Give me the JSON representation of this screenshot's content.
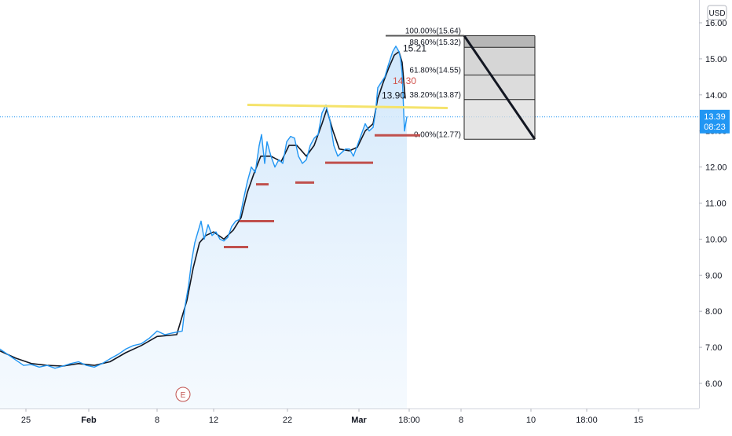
{
  "chart_data": {
    "type": "area",
    "currency": "USD",
    "price_axis": {
      "ticks": [
        "16.00",
        "15.00",
        "14.00",
        "13.00",
        "12.00",
        "11.00",
        "10.00",
        "9.00",
        "8.00",
        "7.00",
        "6.00"
      ],
      "range": [
        5.3,
        16.3
      ]
    },
    "time_axis": {
      "ticks": [
        "25",
        "Feb",
        "8",
        "12",
        "22",
        "Mar",
        "18:00",
        "8",
        "10",
        "18:00",
        "15"
      ]
    },
    "last_price": {
      "value": "13.39",
      "countdown": "08:23",
      "level": 13.39
    },
    "series": [
      {
        "kind": "price",
        "points": [
          [
            0,
            6.95
          ],
          [
            10,
            6.8
          ],
          [
            20,
            6.65
          ],
          [
            30,
            6.5
          ],
          [
            40,
            6.52
          ],
          [
            50,
            6.45
          ],
          [
            60,
            6.5
          ],
          [
            70,
            6.42
          ],
          [
            80,
            6.48
          ],
          [
            90,
            6.55
          ],
          [
            100,
            6.6
          ],
          [
            110,
            6.5
          ],
          [
            120,
            6.45
          ],
          [
            130,
            6.55
          ],
          [
            140,
            6.68
          ],
          [
            150,
            6.8
          ],
          [
            160,
            6.95
          ],
          [
            170,
            7.05
          ],
          [
            180,
            7.1
          ],
          [
            190,
            7.25
          ],
          [
            200,
            7.45
          ],
          [
            210,
            7.35
          ],
          [
            220,
            7.4
          ],
          [
            232,
            7.45
          ],
          [
            236,
            8.2
          ],
          [
            240,
            8.7
          ],
          [
            244,
            9.4
          ],
          [
            248,
            9.9
          ],
          [
            252,
            10.2
          ],
          [
            256,
            10.5
          ],
          [
            260,
            10.0
          ],
          [
            265,
            10.4
          ],
          [
            270,
            10.1
          ],
          [
            275,
            10.2
          ],
          [
            280,
            10.0
          ],
          [
            285,
            9.95
          ],
          [
            290,
            10.05
          ],
          [
            295,
            10.35
          ],
          [
            300,
            10.5
          ],
          [
            305,
            10.55
          ],
          [
            310,
            11.1
          ],
          [
            315,
            11.6
          ],
          [
            320,
            12.0
          ],
          [
            325,
            11.85
          ],
          [
            330,
            12.6
          ],
          [
            333,
            12.9
          ],
          [
            337,
            12.1
          ],
          [
            340,
            12.7
          ],
          [
            345,
            12.3
          ],
          [
            350,
            12.0
          ],
          [
            355,
            12.2
          ],
          [
            360,
            12.1
          ],
          [
            365,
            12.7
          ],
          [
            370,
            12.85
          ],
          [
            375,
            12.8
          ],
          [
            380,
            12.3
          ],
          [
            385,
            12.1
          ],
          [
            390,
            12.2
          ],
          [
            395,
            12.6
          ],
          [
            400,
            12.8
          ],
          [
            405,
            12.9
          ],
          [
            410,
            13.5
          ],
          [
            415,
            13.72
          ],
          [
            420,
            13.3
          ],
          [
            425,
            12.6
          ],
          [
            430,
            12.3
          ],
          [
            435,
            12.4
          ],
          [
            440,
            12.5
          ],
          [
            445,
            12.5
          ],
          [
            450,
            12.3
          ],
          [
            455,
            12.6
          ],
          [
            460,
            12.9
          ],
          [
            465,
            13.2
          ],
          [
            470,
            13.0
          ],
          [
            475,
            13.1
          ],
          [
            478,
            13.5
          ],
          [
            481,
            14.2
          ],
          [
            484,
            14.3
          ],
          [
            487,
            14.4
          ],
          [
            490,
            14.5
          ],
          [
            494,
            14.8
          ],
          [
            497,
            15.0
          ],
          [
            500,
            15.2
          ],
          [
            504,
            15.35
          ],
          [
            508,
            15.2
          ],
          [
            510,
            15.0
          ],
          [
            512,
            14.6
          ],
          [
            515,
            13.0
          ],
          [
            518,
            13.39
          ]
        ]
      },
      {
        "kind": "moving-average",
        "points": [
          [
            0,
            6.9
          ],
          [
            20,
            6.7
          ],
          [
            40,
            6.55
          ],
          [
            60,
            6.5
          ],
          [
            80,
            6.48
          ],
          [
            100,
            6.55
          ],
          [
            120,
            6.5
          ],
          [
            140,
            6.6
          ],
          [
            160,
            6.85
          ],
          [
            180,
            7.05
          ],
          [
            200,
            7.3
          ],
          [
            225,
            7.35
          ],
          [
            238,
            8.3
          ],
          [
            246,
            9.2
          ],
          [
            254,
            9.9
          ],
          [
            262,
            10.1
          ],
          [
            272,
            10.2
          ],
          [
            285,
            10.0
          ],
          [
            297,
            10.25
          ],
          [
            307,
            10.6
          ],
          [
            315,
            11.3
          ],
          [
            323,
            11.8
          ],
          [
            332,
            12.3
          ],
          [
            345,
            12.3
          ],
          [
            358,
            12.15
          ],
          [
            368,
            12.6
          ],
          [
            378,
            12.6
          ],
          [
            390,
            12.3
          ],
          [
            400,
            12.6
          ],
          [
            410,
            13.2
          ],
          [
            416,
            13.6
          ],
          [
            424,
            13.0
          ],
          [
            432,
            12.5
          ],
          [
            445,
            12.45
          ],
          [
            455,
            12.55
          ],
          [
            465,
            13.0
          ],
          [
            475,
            13.2
          ],
          [
            481,
            13.9
          ],
          [
            488,
            14.35
          ],
          [
            495,
            14.75
          ],
          [
            502,
            15.1
          ],
          [
            508,
            15.2
          ],
          [
            512,
            14.9
          ],
          [
            516,
            13.9
          ]
        ]
      }
    ],
    "fibonacci": {
      "levels": [
        {
          "label": "100.00%(15.64)",
          "price": 15.64
        },
        {
          "label": "88.60%(15.32)",
          "price": 15.32
        },
        {
          "label": "61.80%(14.55)",
          "price": 14.55
        },
        {
          "label": "38.20%(13.87)",
          "price": 13.87
        },
        {
          "label": "0.00%(12.77)",
          "price": 12.77
        }
      ]
    },
    "annotations": [
      {
        "text": "15.21",
        "price": 15.21
      },
      {
        "text": "14.30",
        "price": 14.3
      },
      {
        "text": "13.90",
        "price": 13.9
      }
    ],
    "resistance_line": {
      "price": 13.68
    },
    "support_segments": [
      {
        "price": 9.78
      },
      {
        "price": 10.5
      },
      {
        "price": 11.52
      },
      {
        "price": 11.57
      },
      {
        "price": 12.12
      },
      {
        "price": 12.88
      }
    ],
    "earnings_marker": "E",
    "colors": {
      "price_line": "#2196f3",
      "ma_line": "#131722",
      "area_fill": "#dbeefd",
      "resistance": "#f5e36b",
      "support": "#c0504d",
      "fib_dark": "#9e9e9e",
      "fib_light": "#dcdcdc",
      "last_price_badge": "#2196f3",
      "annotation_red": "#d0524c"
    }
  }
}
